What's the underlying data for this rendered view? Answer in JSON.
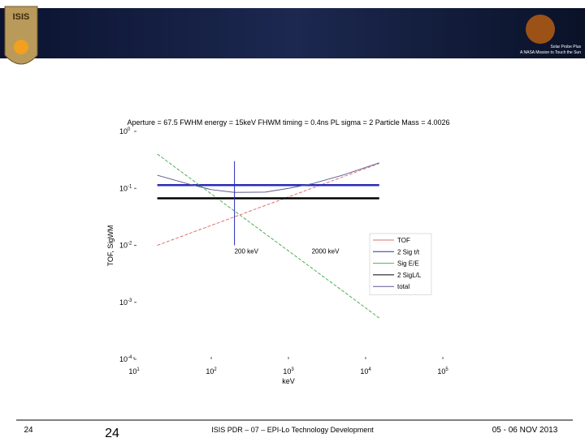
{
  "slide": {
    "logo_text": "ISIS",
    "banner_lines": [
      "Solar Probe Plus",
      "A NASA Mission to Touch the Sun"
    ],
    "slide_number_small": "24",
    "slide_number": "24",
    "footer_center": "ISIS PDR – 07 – EPI-Lo Technology Development",
    "footer_date": "05 - 06 NOV 2013"
  },
  "chart_data": {
    "type": "line",
    "title": "Aperture = 67.5  FWHM energy = 15keV  FHWM timing = 0.4ns  PL sigma = 2  Particle Mass = 4.0026",
    "xlabel": "keV",
    "ylabel": "TOF, SigWM",
    "log_x": true,
    "log_y": true,
    "grid": false,
    "legend": "right",
    "x": [
      20,
      50,
      100,
      200,
      500,
      1000,
      2000,
      5000,
      15000
    ],
    "series": [
      {
        "name": "TOF",
        "color": "#e07070",
        "dashed": true,
        "line_width": 1,
        "values": [
          0.01,
          0.0158,
          0.0224,
          0.0316,
          0.05,
          0.0707,
          0.1,
          0.158,
          0.274
        ]
      },
      {
        "name": "2 Sig t/t",
        "color": "#2a2ab8",
        "dashed": false,
        "line_width": 2.5,
        "values": [
          0.114,
          0.114,
          0.114,
          0.114,
          0.114,
          0.114,
          0.114,
          0.114,
          0.114
        ]
      },
      {
        "name": "Sig E/E",
        "color": "#52b052",
        "dashed": true,
        "line_width": 1,
        "values": [
          0.4,
          0.16,
          0.08,
          0.04,
          0.016,
          0.008,
          0.004,
          0.0016,
          0.00053
        ]
      },
      {
        "name": "2 SigL/L",
        "color": "#000000",
        "dashed": false,
        "line_width": 2.5,
        "values": [
          0.067,
          0.067,
          0.067,
          0.067,
          0.067,
          0.067,
          0.067,
          0.067,
          0.067
        ]
      },
      {
        "name": "total",
        "color": "#5a5a96",
        "dashed": false,
        "line_width": 1,
        "values": [
          0.17,
          0.12,
          0.095,
          0.085,
          0.086,
          0.1,
          0.12,
          0.17,
          0.28
        ]
      }
    ],
    "annotations": [
      {
        "text": "200 keV",
        "x": 200,
        "vline": true
      },
      {
        "text": "2000 keV",
        "x": 2000,
        "vline": false
      }
    ],
    "xlim": [
      10,
      100000
    ],
    "xticks": [
      {
        "value": 10,
        "label": "10^1"
      },
      {
        "value": 100,
        "label": "10^2"
      },
      {
        "value": 1000,
        "label": "10^3"
      },
      {
        "value": 10000,
        "label": "10^4"
      },
      {
        "value": 100000,
        "label": "10^5"
      }
    ],
    "ylim": [
      0.0001,
      1
    ],
    "yticks": [
      {
        "value": 1,
        "label": "10^0"
      },
      {
        "value": 0.1,
        "label": "10^-1"
      },
      {
        "value": 0.01,
        "label": "10^-2"
      },
      {
        "value": 0.001,
        "label": "10^-3"
      },
      {
        "value": 0.0001,
        "label": "10^-4"
      }
    ]
  }
}
